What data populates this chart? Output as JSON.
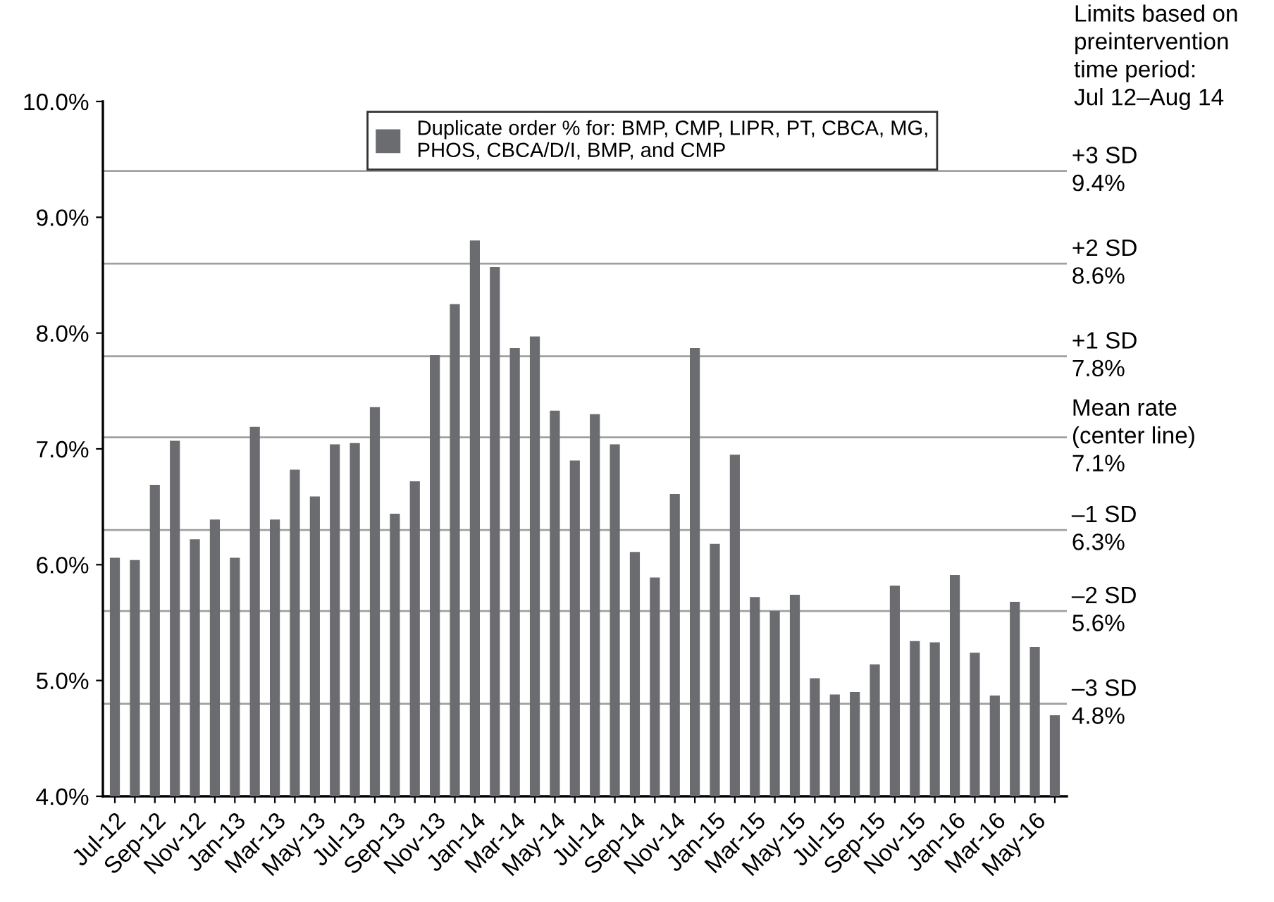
{
  "chart_data": {
    "type": "bar",
    "categories": [
      "Jul-12",
      null,
      "Sep-12",
      null,
      "Nov-12",
      null,
      "Jan-13",
      null,
      "Mar-13",
      null,
      "May-13",
      null,
      "Jul-13",
      null,
      "Sep-13",
      null,
      "Nov-13",
      null,
      "Jan-14",
      null,
      "Mar-14",
      null,
      "May-14",
      null,
      "Jul-14",
      null,
      "Sep-14",
      null,
      "Nov-14",
      null,
      "Jan-15",
      null,
      "Mar-15",
      null,
      "May-15",
      null,
      "Jul-15",
      null,
      "Sep-15",
      null,
      "Nov-15",
      null,
      "Jan-16",
      null,
      "Mar-16",
      null,
      "May-16",
      null
    ],
    "series": [
      {
        "name": "Duplicate order % for: BMP, CMP, LIPR, PT, CBCA, MG,\nPHOS, CBCA/D/I, BMP, and CMP",
        "color": "#6b6c70",
        "values": [
          6.06,
          6.04,
          6.69,
          7.07,
          6.22,
          6.39,
          6.06,
          7.19,
          6.39,
          6.82,
          6.59,
          7.04,
          7.05,
          7.36,
          6.44,
          6.72,
          7.81,
          8.25,
          8.8,
          8.57,
          7.87,
          7.97,
          7.33,
          6.9,
          7.3,
          7.04,
          6.11,
          5.89,
          6.61,
          7.87,
          6.18,
          6.95,
          5.72,
          5.6,
          5.74,
          5.02,
          4.88,
          4.9,
          5.14,
          5.82,
          5.34,
          5.33,
          5.91,
          5.24,
          4.87,
          5.68,
          5.29,
          4.7
        ]
      }
    ],
    "ylim": [
      4.0,
      10.0
    ],
    "yticks": [
      {
        "value": 4.0,
        "label": "4.0%"
      },
      {
        "value": 5.0,
        "label": "5.0%"
      },
      {
        "value": 6.0,
        "label": "6.0%"
      },
      {
        "value": 7.0,
        "label": "7.0%"
      },
      {
        "value": 8.0,
        "label": "8.0%"
      },
      {
        "value": 9.0,
        "label": "9.0%"
      },
      {
        "value": 10.0,
        "label": "10.0%"
      }
    ],
    "ref_lines": [
      {
        "axis": "y",
        "value": 9.4,
        "label": "+3 SD\n9.4%",
        "color": "#a0a0a0"
      },
      {
        "axis": "y",
        "value": 8.6,
        "label": "+2 SD\n8.6%",
        "color": "#a0a0a0"
      },
      {
        "axis": "y",
        "value": 7.8,
        "label": "+1 SD\n7.8%",
        "color": "#a0a0a0"
      },
      {
        "axis": "y",
        "value": 7.1,
        "label": "Mean rate\n(center line)\n7.1%",
        "color": "#a0a0a0"
      },
      {
        "axis": "y",
        "value": 6.3,
        "label": "–1 SD\n6.3%",
        "color": "#a0a0a0"
      },
      {
        "axis": "y",
        "value": 5.6,
        "label": "–2 SD\n5.6%",
        "color": "#a0a0a0"
      },
      {
        "axis": "y",
        "value": 4.8,
        "label": "–3 SD\n4.8%",
        "color": "#a0a0a0"
      }
    ],
    "annotations": [
      "Limits based on\npreintervention\ntime period:\nJul 12–Aug 14"
    ],
    "legend": "top",
    "grid": false
  }
}
